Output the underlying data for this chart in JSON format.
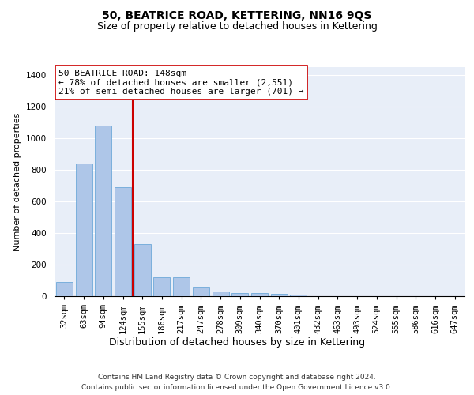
{
  "title1": "50, BEATRICE ROAD, KETTERING, NN16 9QS",
  "title2": "Size of property relative to detached houses in Kettering",
  "xlabel": "Distribution of detached houses by size in Kettering",
  "ylabel": "Number of detached properties",
  "footer1": "Contains HM Land Registry data © Crown copyright and database right 2024.",
  "footer2": "Contains public sector information licensed under the Open Government Licence v3.0.",
  "annotation_line1": "50 BEATRICE ROAD: 148sqm",
  "annotation_line2": "← 78% of detached houses are smaller (2,551)",
  "annotation_line3": "21% of semi-detached houses are larger (701) →",
  "bar_color": "#aec6e8",
  "bar_edge_color": "#5a9fd4",
  "vline_color": "#cc0000",
  "annotation_box_color": "#cc0000",
  "background_color": "#e8eef8",
  "categories": [
    "32sqm",
    "63sqm",
    "94sqm",
    "124sqm",
    "155sqm",
    "186sqm",
    "217sqm",
    "247sqm",
    "278sqm",
    "309sqm",
    "340sqm",
    "370sqm",
    "401sqm",
    "432sqm",
    "463sqm",
    "493sqm",
    "524sqm",
    "555sqm",
    "586sqm",
    "616sqm",
    "647sqm"
  ],
  "values": [
    90,
    840,
    1080,
    690,
    330,
    120,
    120,
    60,
    30,
    22,
    18,
    15,
    10,
    0,
    0,
    0,
    0,
    0,
    0,
    0,
    0
  ],
  "ylim": [
    0,
    1450
  ],
  "yticks": [
    0,
    200,
    400,
    600,
    800,
    1000,
    1200,
    1400
  ],
  "vline_pos": 3.5,
  "title1_fontsize": 10,
  "title2_fontsize": 9,
  "xlabel_fontsize": 9,
  "ylabel_fontsize": 8,
  "tick_fontsize": 7.5,
  "annotation_fontsize": 8,
  "footer_fontsize": 6.5
}
